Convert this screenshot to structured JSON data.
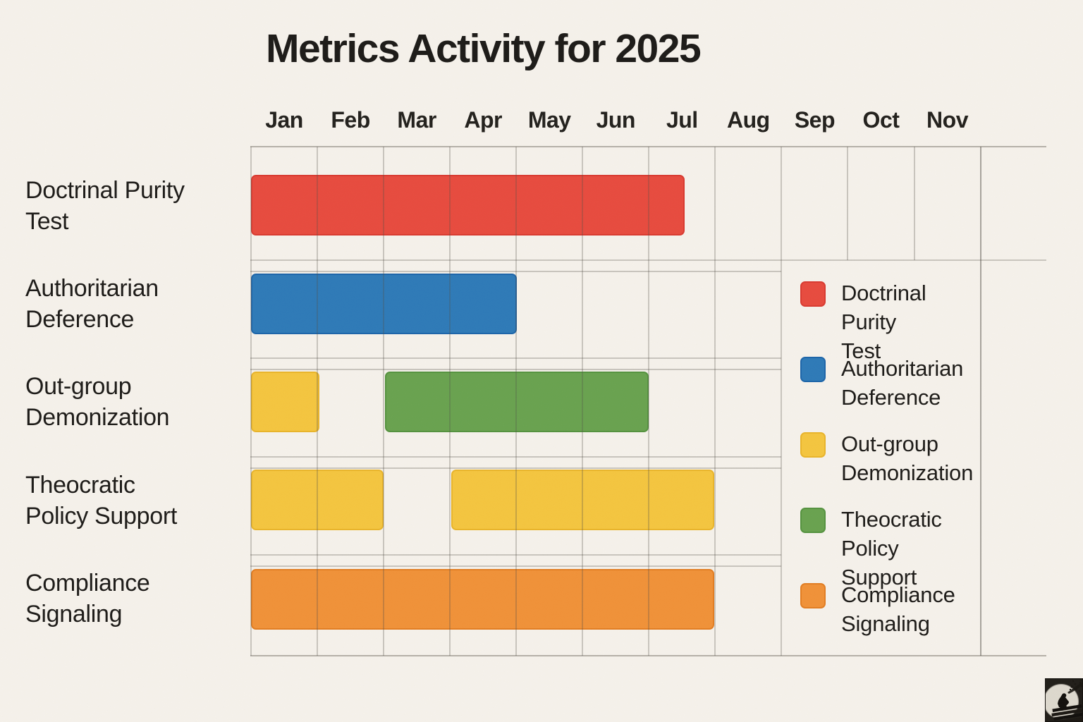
{
  "title": "Metrics Activity for 2025",
  "watermark_icon": "figure-reading-on-book-stack-with-moon-illustration",
  "colors": {
    "background": "#f5f1ea",
    "text": "#1d1b18",
    "grid_line": "rgba(84,80,71,0.28)",
    "grid_border": "rgba(84,80,71,0.40)"
  },
  "chart_data": {
    "type": "gantt",
    "title": "Metrics Activity for 2025",
    "x_axis": {
      "position": "top",
      "tick_labels": [
        "Jan",
        "Feb",
        "Mar",
        "Apr",
        "May",
        "Jun",
        "Jul",
        "Aug",
        "Sep",
        "Oct",
        "Nov"
      ],
      "total_columns": 12,
      "grid": true
    },
    "palette": {
      "red": {
        "fill": "#e74b3e",
        "border": "#d93a30"
      },
      "blue": {
        "fill": "#2e7ab7",
        "border": "#1d65a9"
      },
      "yellow": {
        "fill": "#f4c53f",
        "border": "#e9b42a"
      },
      "green": {
        "fill": "#69a24f",
        "border": "#55923f"
      },
      "orange": {
        "fill": "#f09138",
        "border": "#e27d22"
      }
    },
    "rows": [
      {
        "label": "Doctrinal Purity Test",
        "label_lines": [
          "Doctrinal Purity",
          "Test"
        ],
        "segments": [
          {
            "start_month": 0,
            "end_month": 6.54,
            "color": "red"
          }
        ]
      },
      {
        "label": "Authoritarian Deference",
        "label_lines": [
          "Authoritarian",
          "Deference"
        ],
        "segments": [
          {
            "start_month": 0,
            "end_month": 4.01,
            "color": "blue"
          }
        ]
      },
      {
        "label": "Out-group Demonization",
        "label_lines": [
          "Out-group",
          "Demonization"
        ],
        "segments": [
          {
            "start_month": 0,
            "end_month": 1.03,
            "color": "yellow"
          },
          {
            "start_month": 2.02,
            "end_month": 6.0,
            "color": "green"
          }
        ]
      },
      {
        "label": "Theocratic Policy Support",
        "label_lines": [
          "Theocratic",
          "Policy Support"
        ],
        "segments": [
          {
            "start_month": 0,
            "end_month": 2.0,
            "color": "yellow"
          },
          {
            "start_month": 3.02,
            "end_month": 6.99,
            "color": "yellow"
          }
        ]
      },
      {
        "label": "Compliance Signaling",
        "label_lines": [
          "Compliance",
          "Signaling"
        ],
        "segments": [
          {
            "start_month": 0,
            "end_month": 6.99,
            "color": "orange"
          }
        ]
      }
    ],
    "legend": {
      "position": "right",
      "items": [
        {
          "color": "red",
          "label": "Doctrinal Purity Test",
          "label_lines": [
            "Doctrinal",
            "Purity Test"
          ]
        },
        {
          "color": "blue",
          "label": "Authoritarian Deference",
          "label_lines": [
            "Authoritarian",
            "Deference"
          ]
        },
        {
          "color": "yellow",
          "label": "Out-group Demonization",
          "label_lines": [
            "Out-group",
            "Demonization"
          ]
        },
        {
          "color": "green",
          "label": "Theocratic Policy Support",
          "label_lines": [
            "Theocratic",
            "Policy Support"
          ]
        },
        {
          "color": "orange",
          "label": "Compliance Signaling",
          "label_lines": [
            "Compliance",
            "Signaling"
          ]
        }
      ]
    }
  }
}
